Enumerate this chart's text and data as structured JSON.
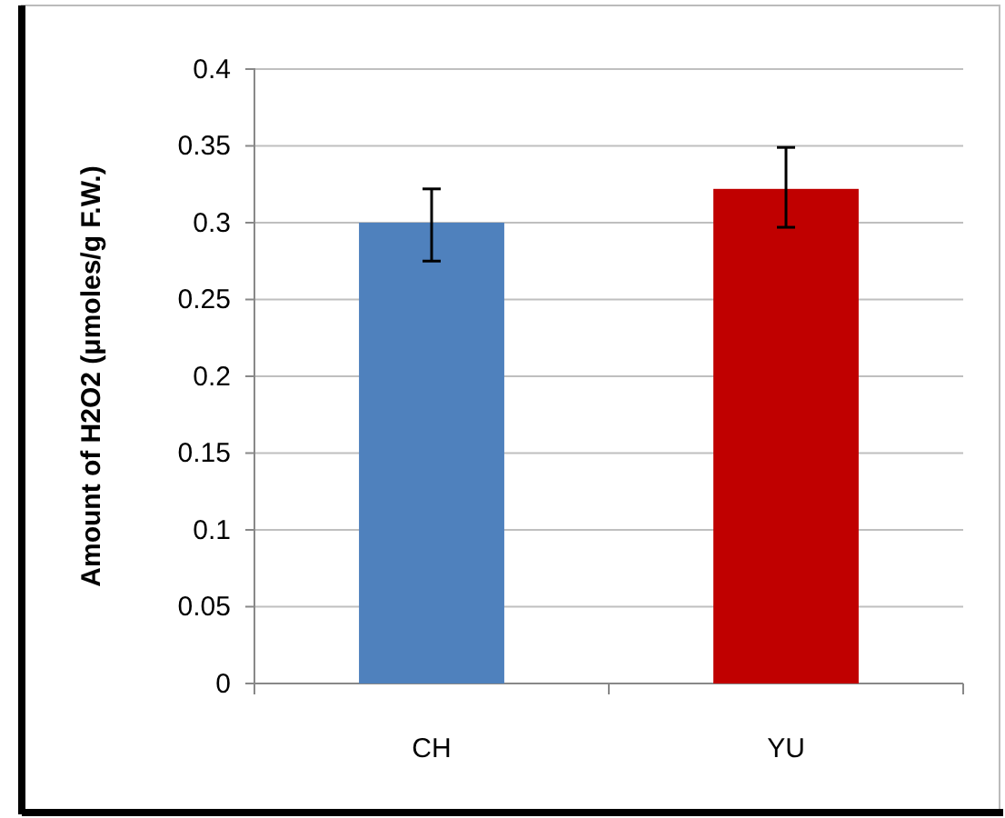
{
  "chart_data": {
    "type": "bar",
    "ylabel": "Amount of H2O2 (μmoles/g F.W.)",
    "categories": [
      "CH",
      "YU"
    ],
    "values": [
      0.3,
      0.322
    ],
    "colors": [
      "#4f81bd",
      "#c00000"
    ],
    "errors": [
      [
        0.275,
        0.322
      ],
      [
        0.297,
        0.349
      ]
    ],
    "ylim": [
      0,
      0.4
    ],
    "yticks": [
      0,
      0.05,
      0.1,
      0.15,
      0.2,
      0.25,
      0.3,
      0.35,
      0.4
    ],
    "grid": "y"
  }
}
